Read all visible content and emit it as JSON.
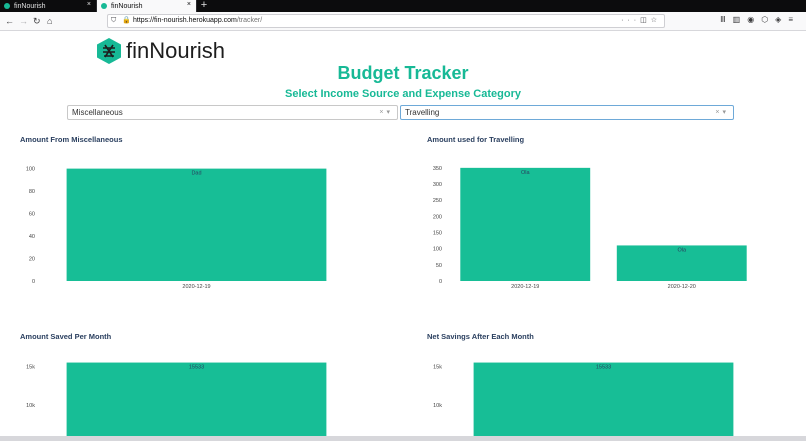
{
  "browser": {
    "tabs": [
      {
        "title": "finNourish",
        "active": false
      },
      {
        "title": "finNourish",
        "active": true
      }
    ],
    "url_host": "https://fin-nourish.herokuapp.com",
    "url_path": "/tracker/"
  },
  "app": {
    "brand": "finNourish",
    "title": "Budget Tracker",
    "subtitle": "Select Income Source and Expense Category"
  },
  "filters": {
    "income_source": "Miscellaneous",
    "expense_category": "Travelling"
  },
  "colors": {
    "accent": "#17b996",
    "bar": "#17be96",
    "title_text": "#2a3f5f"
  },
  "chart_data": [
    {
      "type": "bar",
      "title": "Amount From Miscellaneous",
      "categories": [
        "2020-12-19"
      ],
      "values": [
        100
      ],
      "bar_labels": [
        "Dad"
      ],
      "yticks": [
        0,
        20,
        40,
        60,
        80,
        100
      ],
      "ylim": [
        0,
        105
      ]
    },
    {
      "type": "bar",
      "title": "Amount used for Travelling",
      "categories": [
        "2020-12-19",
        "2020-12-20"
      ],
      "values": [
        350,
        110
      ],
      "bar_labels": [
        "Ola",
        "Ola"
      ],
      "yticks": [
        0,
        50,
        100,
        150,
        200,
        250,
        300,
        350
      ],
      "ylim": [
        0,
        365
      ]
    },
    {
      "type": "bar",
      "title": "Amount Saved Per Month",
      "categories": [
        ""
      ],
      "values": [
        15533
      ],
      "bar_labels": [
        "15533"
      ],
      "yticks": [
        10000,
        15000
      ],
      "ytick_labels": [
        "10k",
        "15k"
      ]
    },
    {
      "type": "bar",
      "title": "Net Savings After Each Month",
      "categories": [
        ""
      ],
      "values": [
        15533
      ],
      "bar_labels": [
        "15533"
      ],
      "yticks": [
        10000,
        15000
      ],
      "ytick_labels": [
        "10k",
        "15k"
      ]
    }
  ]
}
